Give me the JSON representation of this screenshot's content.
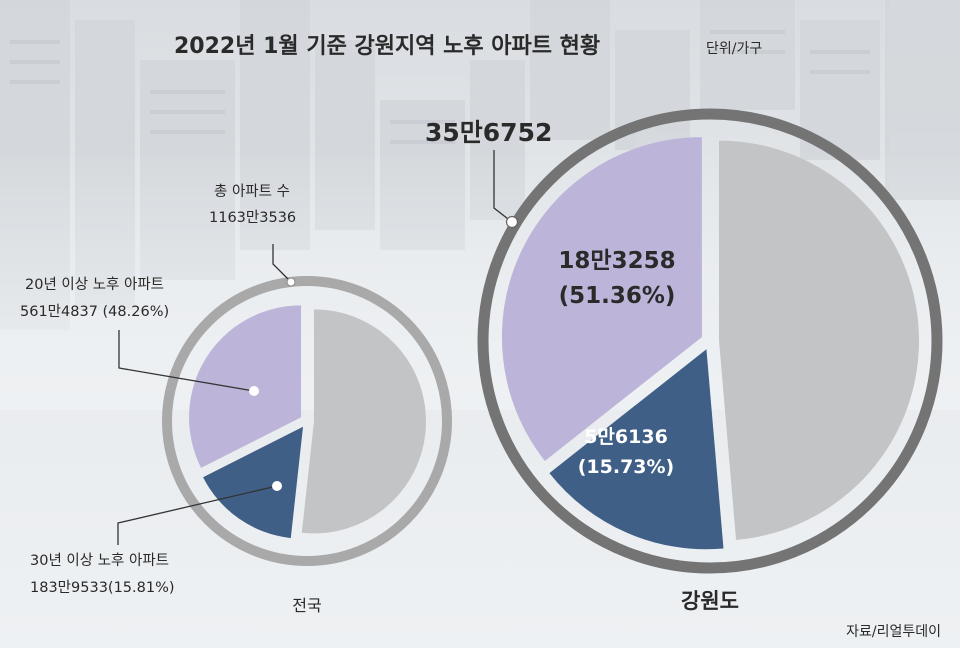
{
  "title": "2022년 1월 기준 강원지역 노후 아파트 현황",
  "unit": "단위/가구",
  "source": "자료/리얼투데이",
  "colors": {
    "over20": "#bcb5d9",
    "over30": "#3f5f86",
    "rest": "#c3c4c5",
    "ring": "#747474",
    "ring_national": "#a9a9aa",
    "background": "#eef1f3"
  },
  "chart_data": [
    {
      "type": "pie",
      "name": "전국",
      "total": 11633536,
      "total_label_title": "총 아파트 수",
      "total_label_value": "1163만3536",
      "slices": [
        {
          "key": "over20_only",
          "percent": 32.45,
          "color": "#bcb5d9"
        },
        {
          "key": "over30",
          "percent": 15.81,
          "color": "#3f5f86"
        },
        {
          "key": "rest",
          "percent": 51.74,
          "color": "#c3c4c5"
        }
      ],
      "annotations": {
        "over20_title": "20년 이상 노후 아파트",
        "over20_value": "561만4837 (48.26%)",
        "over30_title": "30년 이상 노후 아파트",
        "over30_value": "183만9533(15.81%)"
      }
    },
    {
      "type": "pie",
      "name": "강원도",
      "total": 356752,
      "total_label_value": "35만6752",
      "slices": [
        {
          "key": "over20_only",
          "percent": 35.63,
          "color": "#bcb5d9"
        },
        {
          "key": "over30",
          "percent": 15.73,
          "color": "#3f5f86"
        },
        {
          "key": "rest",
          "percent": 48.64,
          "color": "#c3c4c5"
        }
      ],
      "annotations": {
        "over20_value": "18만3258",
        "over20_percent": "(51.36%)",
        "over30_value": "5만6136",
        "over30_percent": "(15.73%)"
      }
    }
  ]
}
